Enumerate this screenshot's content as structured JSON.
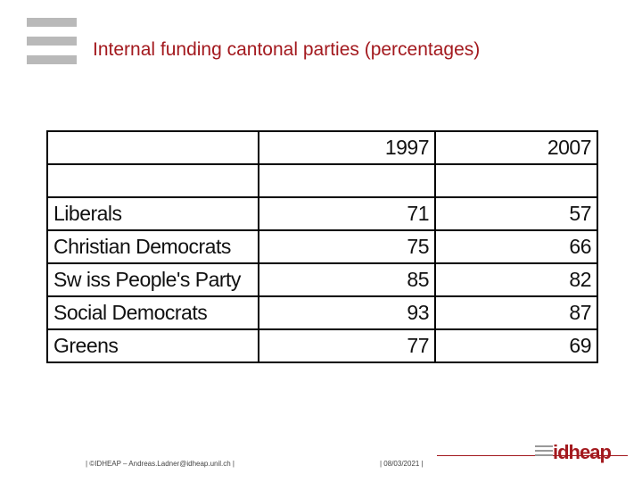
{
  "slide": {
    "title": "Internal funding cantonal parties (percentages)"
  },
  "table": {
    "header": [
      "",
      "1997",
      "2007"
    ],
    "rows": [
      [
        "",
        "",
        ""
      ],
      [
        "Liberals",
        "71",
        "57"
      ],
      [
        "Christian Democrats",
        "75",
        "66"
      ],
      [
        "Sw iss People's Party",
        "85",
        "82"
      ],
      [
        "Social Democrats",
        "93",
        "87"
      ],
      [
        "Greens",
        "77",
        "69"
      ]
    ]
  },
  "footer": {
    "credit": "| ©IDHEAP – Andreas.Ladner@idheap.unil.ch |",
    "date": "| 08/03/2021 |",
    "brand": "idheap"
  },
  "colors": {
    "accent": "#a3191e",
    "logo_bars": "#b9b9b9"
  }
}
